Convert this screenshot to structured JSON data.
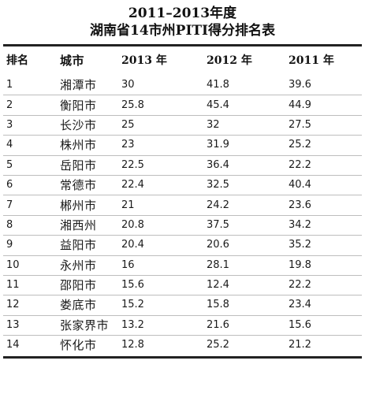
{
  "title_line1": "2011–2013年度",
  "title_line2": "湖南省14市州PITI得分排名表",
  "headers": {
    "rank": "排名",
    "city": "城市",
    "y2013": "2013 年",
    "y2012": "2012 年",
    "y2011": "2011 年"
  },
  "rows": [
    {
      "rank": "1",
      "city": "湘潭市",
      "y2013": "30",
      "y2012": "41.8",
      "y2011": "39.6"
    },
    {
      "rank": "2",
      "city": "衡阳市",
      "y2013": "25.8",
      "y2012": "45.4",
      "y2011": "44.9"
    },
    {
      "rank": "3",
      "city": "长沙市",
      "y2013": "25",
      "y2012": "32",
      "y2011": "27.5"
    },
    {
      "rank": "4",
      "city": "株州市",
      "y2013": "23",
      "y2012": "31.9",
      "y2011": "25.2"
    },
    {
      "rank": "5",
      "city": "岳阳市",
      "y2013": "22.5",
      "y2012": "36.4",
      "y2011": "22.2"
    },
    {
      "rank": "6",
      "city": "常德市",
      "y2013": "22.4",
      "y2012": "32.5",
      "y2011": "40.4"
    },
    {
      "rank": "7",
      "city": "郴州市",
      "y2013": "21",
      "y2012": "24.2",
      "y2011": "23.6"
    },
    {
      "rank": "8",
      "city": "湘西州",
      "y2013": "20.8",
      "y2012": "37.5",
      "y2011": "34.2"
    },
    {
      "rank": "9",
      "city": "益阳市",
      "y2013": "20.4",
      "y2012": "20.6",
      "y2011": "35.2"
    },
    {
      "rank": "10",
      "city": "永州市",
      "y2013": "16",
      "y2012": "28.1",
      "y2011": "19.8"
    },
    {
      "rank": "11",
      "city": "邵阳市",
      "y2013": "15.6",
      "y2012": "12.4",
      "y2011": "22.2"
    },
    {
      "rank": "12",
      "city": "娄底市",
      "y2013": "15.2",
      "y2012": "15.8",
      "y2011": "23.4"
    },
    {
      "rank": "13",
      "city": "张家界市",
      "y2013": "13.2",
      "y2012": "21.6",
      "y2011": "15.6"
    },
    {
      "rank": "14",
      "city": "怀化市",
      "y2013": "12.8",
      "y2012": "25.2",
      "y2011": "21.2"
    }
  ]
}
